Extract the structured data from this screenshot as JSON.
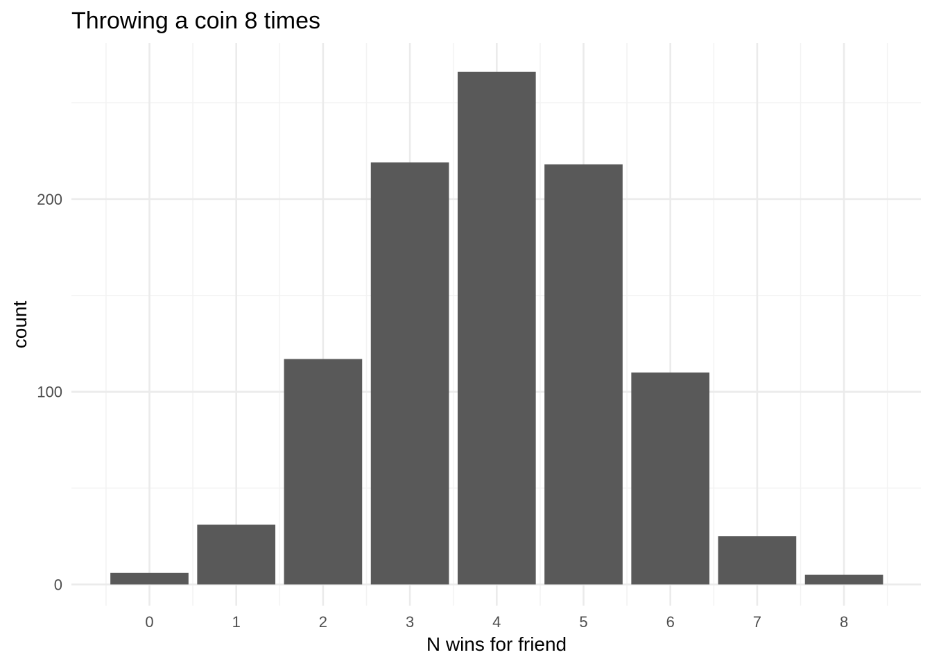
{
  "chart_data": {
    "type": "bar",
    "title": "Throwing a coin 8 times",
    "xlabel": "N wins for friend",
    "ylabel": "count",
    "categories": [
      "0",
      "1",
      "2",
      "3",
      "4",
      "5",
      "6",
      "7",
      "8"
    ],
    "values": [
      6,
      31,
      117,
      219,
      266,
      218,
      110,
      25,
      5
    ],
    "ylim": [
      -11,
      281
    ],
    "yticks": [
      0,
      100,
      200
    ],
    "yticks_minor": [
      50,
      150,
      250
    ],
    "grid": true,
    "legend": "none",
    "colors": {
      "bar": "#595959",
      "grid_major": "#ebebeb",
      "grid_minor": "#f3f3f3",
      "tick_label": "#4d4d4d",
      "background": "#ffffff"
    }
  }
}
